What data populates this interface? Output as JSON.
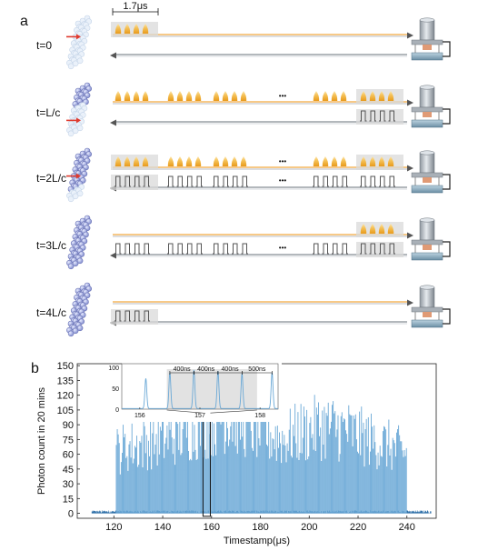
{
  "panel_a": {
    "label": "a",
    "scale_label": "1.7μs",
    "rows": [
      {
        "time_label": "t=0",
        "fwd_visible": 4,
        "fwd_groups": 1,
        "back_groups": 0,
        "back_shade_right": false,
        "fwd_shade": "left",
        "back_shade_left": false,
        "atoms_filled": 0,
        "arrow_row": 4
      },
      {
        "time_label": "t=L/c",
        "fwd_groups": 5,
        "back_groups": 1,
        "fwd_shade": "right",
        "back_shade_right": true,
        "back_shade_left": false,
        "atoms_filled": 6,
        "arrow_row": 9
      },
      {
        "time_label": "t=2L/c",
        "fwd_groups": 5,
        "back_groups": 5,
        "fwd_shade": "both",
        "back_shade_right": false,
        "back_shade_left": true,
        "atoms_filled": 11,
        "arrow_row": 6
      },
      {
        "time_label": "t=3L/c",
        "fwd_groups": 1,
        "back_groups": 5,
        "fwd_shade": "right",
        "back_shade_right": true,
        "back_shade_left": false,
        "atoms_filled": 14,
        "arrow_row": -1
      },
      {
        "time_label": "t=4L/c",
        "fwd_groups": 0,
        "back_groups": 1,
        "fwd_shade": "none",
        "back_shade_right": false,
        "back_shade_left": true,
        "atoms_filled": 14,
        "arrow_row": -1
      }
    ],
    "ellipsis": "•••"
  },
  "panel_b": {
    "label": "b"
  },
  "chart_data": {
    "type": "bar",
    "xlabel": "Timestamp(μs)",
    "ylabel": "Photon count in 20 mins",
    "xlim": [
      105,
      252
    ],
    "ylim": [
      -5,
      152
    ],
    "xticks": [
      120,
      140,
      160,
      180,
      200,
      220,
      240
    ],
    "yticks": [
      0,
      15,
      30,
      45,
      60,
      75,
      90,
      105,
      120,
      135,
      150
    ],
    "signal_range": [
      121,
      240
    ],
    "pulse_period_us": 0.4,
    "noise_level": 3,
    "envelope_x": [
      121,
      125,
      130,
      135,
      140,
      145,
      150,
      155,
      160,
      165,
      170,
      175,
      180,
      185,
      190,
      195,
      200,
      205,
      210,
      215,
      220,
      225,
      230,
      235,
      240
    ],
    "envelope_y": [
      85,
      90,
      92,
      98,
      100,
      105,
      112,
      118,
      122,
      132,
      128,
      120,
      112,
      105,
      100,
      108,
      112,
      118,
      116,
      112,
      105,
      100,
      95,
      88,
      80
    ],
    "highlight_box": [
      156.5,
      159.5
    ],
    "inset": {
      "xlim": [
        155.7,
        158.3
      ],
      "ylim": [
        0,
        100
      ],
      "xticks": [
        156,
        157,
        158
      ],
      "yticks": [
        0,
        50,
        100
      ],
      "peaks_x": [
        156.1,
        156.5,
        156.9,
        157.3,
        157.7,
        158.2
      ],
      "peaks_y": [
        72,
        86,
        92,
        90,
        84,
        86
      ],
      "shade_range": [
        156.45,
        157.95
      ],
      "annotations": [
        {
          "from": 156.5,
          "to": 156.9,
          "label": "400ns"
        },
        {
          "from": 156.9,
          "to": 157.3,
          "label": "400ns"
        },
        {
          "from": 157.3,
          "to": 157.7,
          "label": "400ns"
        },
        {
          "from": 157.7,
          "to": 158.2,
          "label": "500ns"
        }
      ]
    }
  }
}
